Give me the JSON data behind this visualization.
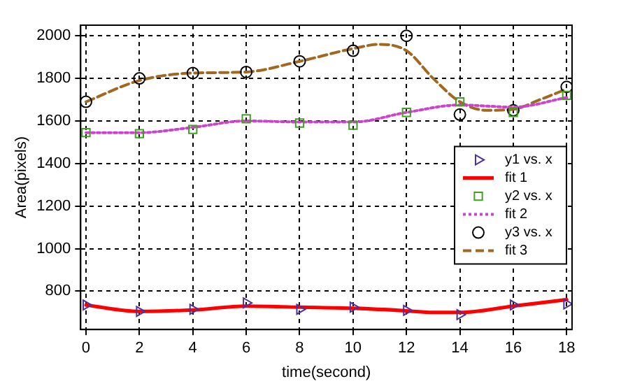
{
  "chart_data": {
    "type": "line",
    "xlabel": "time(second)",
    "ylabel": "Area(pixels)",
    "xlim": [
      -0.2,
      18.2
    ],
    "xticks": [
      0,
      2,
      4,
      6,
      8,
      10,
      12,
      14,
      16,
      18
    ],
    "ylim": [
      620,
      2050
    ],
    "yticks": [
      800,
      1000,
      1200,
      1400,
      1600,
      1800,
      2000
    ],
    "grid": true,
    "legend": "right",
    "series": [
      {
        "name": "y1 vs. x",
        "type": "scatter",
        "marker": "triangle",
        "color": "#5030a0",
        "x": [
          0,
          2,
          4,
          6,
          8,
          10,
          12,
          14,
          16,
          18
        ],
        "values": [
          735,
          705,
          715,
          745,
          715,
          725,
          710,
          690,
          735,
          740
        ]
      },
      {
        "name": "fit 1",
        "type": "line",
        "marker": "none",
        "line_style": "solid",
        "color": "#ff0000",
        "x": [
          0,
          2,
          4,
          6,
          8,
          10,
          12,
          13,
          14,
          16,
          18
        ],
        "values": [
          735,
          705,
          712,
          730,
          725,
          720,
          708,
          700,
          700,
          730,
          760
        ]
      },
      {
        "name": "y2 vs. x",
        "type": "scatter",
        "marker": "square",
        "color": "#40a020",
        "x": [
          0,
          2,
          4,
          6,
          8,
          10,
          12,
          14,
          16,
          18
        ],
        "values": [
          1545,
          1540,
          1560,
          1610,
          1590,
          1580,
          1640,
          1690,
          1640,
          1720
        ]
      },
      {
        "name": "fit 2",
        "type": "line",
        "marker": "none",
        "line_style": "dotted",
        "color": "#cc44cc",
        "x": [
          0,
          2,
          4,
          6,
          8,
          10,
          12,
          14,
          16,
          18
        ],
        "values": [
          1545,
          1545,
          1570,
          1600,
          1595,
          1595,
          1640,
          1675,
          1665,
          1710
        ]
      },
      {
        "name": "y3 vs. x",
        "type": "scatter",
        "marker": "circle",
        "color": "#000000",
        "x": [
          0,
          2,
          4,
          6,
          8,
          10,
          12,
          14,
          16,
          18
        ],
        "values": [
          1690,
          1800,
          1825,
          1830,
          1880,
          1930,
          2000,
          1630,
          1650,
          1760
        ]
      },
      {
        "name": "fit 3",
        "type": "line",
        "marker": "none",
        "line_style": "dashed",
        "color": "#a06820",
        "x": [
          0,
          2,
          4,
          6,
          8,
          10,
          11,
          12,
          13,
          14,
          15,
          16,
          17,
          18
        ],
        "values": [
          1690,
          1790,
          1825,
          1830,
          1880,
          1940,
          1960,
          1930,
          1800,
          1690,
          1650,
          1655,
          1700,
          1750
        ]
      }
    ]
  }
}
